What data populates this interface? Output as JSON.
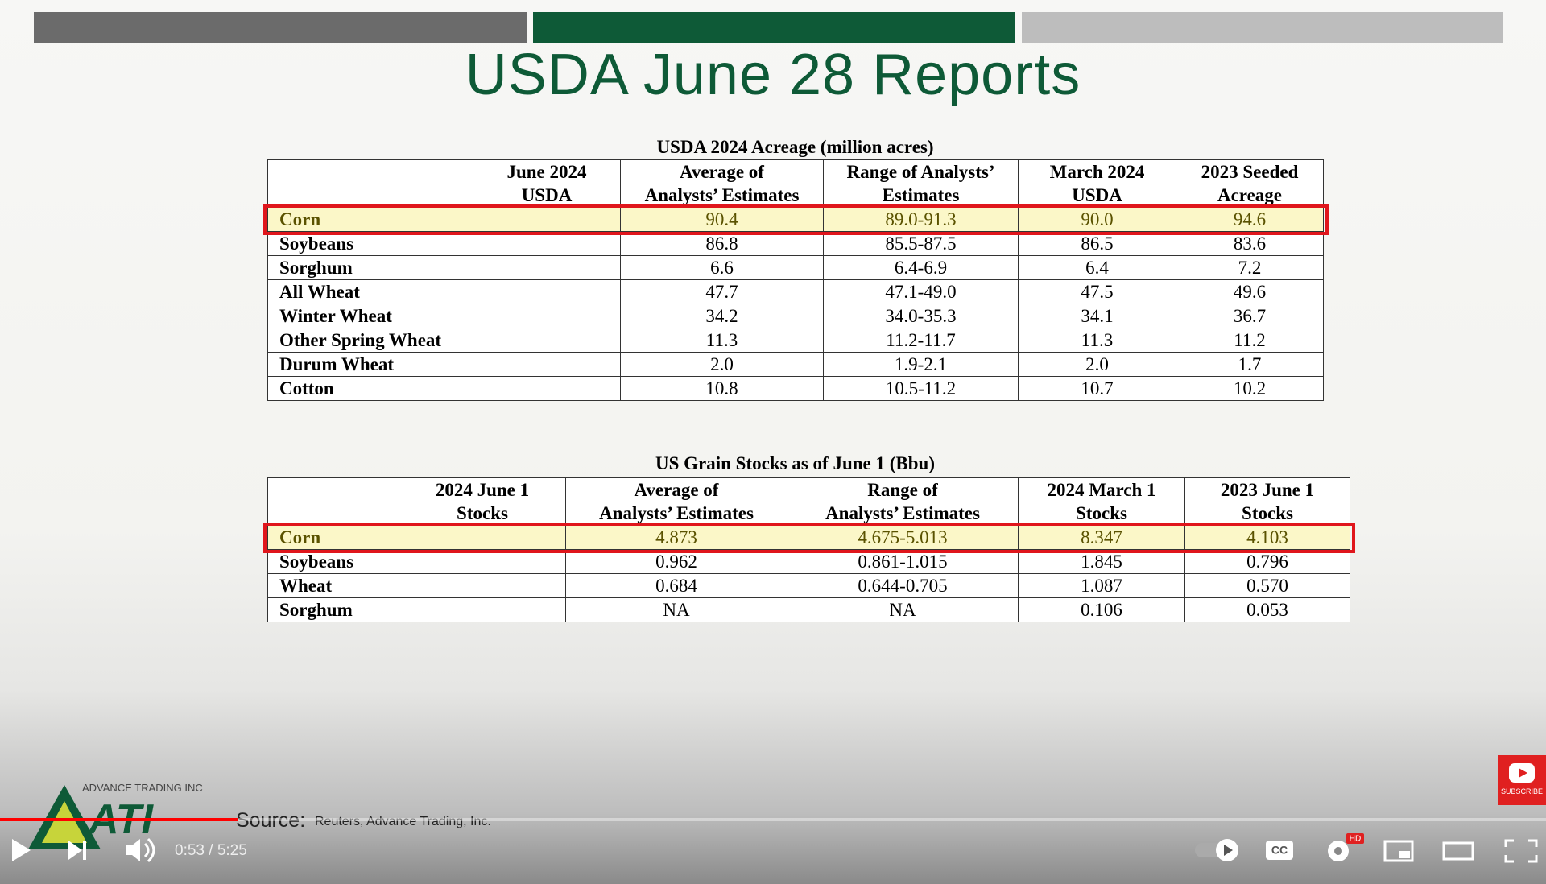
{
  "header": {
    "title": "USDA June 28 Reports"
  },
  "acreage": {
    "caption": "USDA 2024 Acreage (million acres)",
    "columns": [
      [
        "June 2024",
        "USDA"
      ],
      [
        "Average of",
        "Analysts’ Estimates"
      ],
      [
        "Range of Analysts’",
        "Estimates"
      ],
      [
        "March 2024",
        "USDA"
      ],
      [
        "2023 Seeded",
        "Acreage"
      ]
    ],
    "rows": [
      [
        "Corn",
        "90.4",
        "89.0-91.3",
        "90.0",
        "94.6"
      ],
      [
        "Soybeans",
        "86.8",
        "85.5-87.5",
        "86.5",
        "83.6"
      ],
      [
        "Sorghum",
        "6.6",
        "6.4-6.9",
        "6.4",
        "7.2"
      ],
      [
        "All Wheat",
        "47.7",
        "47.1-49.0",
        "47.5",
        "49.6"
      ],
      [
        "Winter Wheat",
        "34.2",
        "34.0-35.3",
        "34.1",
        "36.7"
      ],
      [
        "Other Spring Wheat",
        "11.3",
        "11.2-11.7",
        "11.3",
        "11.2"
      ],
      [
        "Durum Wheat",
        "2.0",
        "1.9-2.1",
        "2.0",
        "1.7"
      ],
      [
        "Cotton",
        "10.8",
        "10.5-11.2",
        "10.7",
        "10.2"
      ]
    ]
  },
  "stocks": {
    "caption": "US Grain Stocks as of June 1 (Bbu)",
    "columns": [
      [
        "2024 June 1",
        "Stocks"
      ],
      [
        "Average of",
        "Analysts’ Estimates"
      ],
      [
        "Range of",
        "Analysts’ Estimates"
      ],
      [
        "2024 March 1",
        "Stocks"
      ],
      [
        "2023 June 1",
        "Stocks"
      ]
    ],
    "rows": [
      [
        "Corn",
        "4.873",
        "4.675-5.013",
        "8.347",
        "4.103"
      ],
      [
        "Soybeans",
        "0.962",
        "0.861-1.015",
        "1.845",
        "0.796"
      ],
      [
        "Wheat",
        "0.684",
        "0.644-0.705",
        "1.087",
        "0.570"
      ],
      [
        "Sorghum",
        "NA",
        "NA",
        "0.106",
        "0.053"
      ]
    ]
  },
  "footer": {
    "company": "ADVANCE TRADING INC",
    "logo": "ATI",
    "source_label": "Source:",
    "source": "Reuters, Advance Trading, Inc."
  },
  "player": {
    "time": "0:53 / 5:25",
    "subscribe": "SUBSCRIBE",
    "cc": "CC",
    "hd": "HD"
  }
}
